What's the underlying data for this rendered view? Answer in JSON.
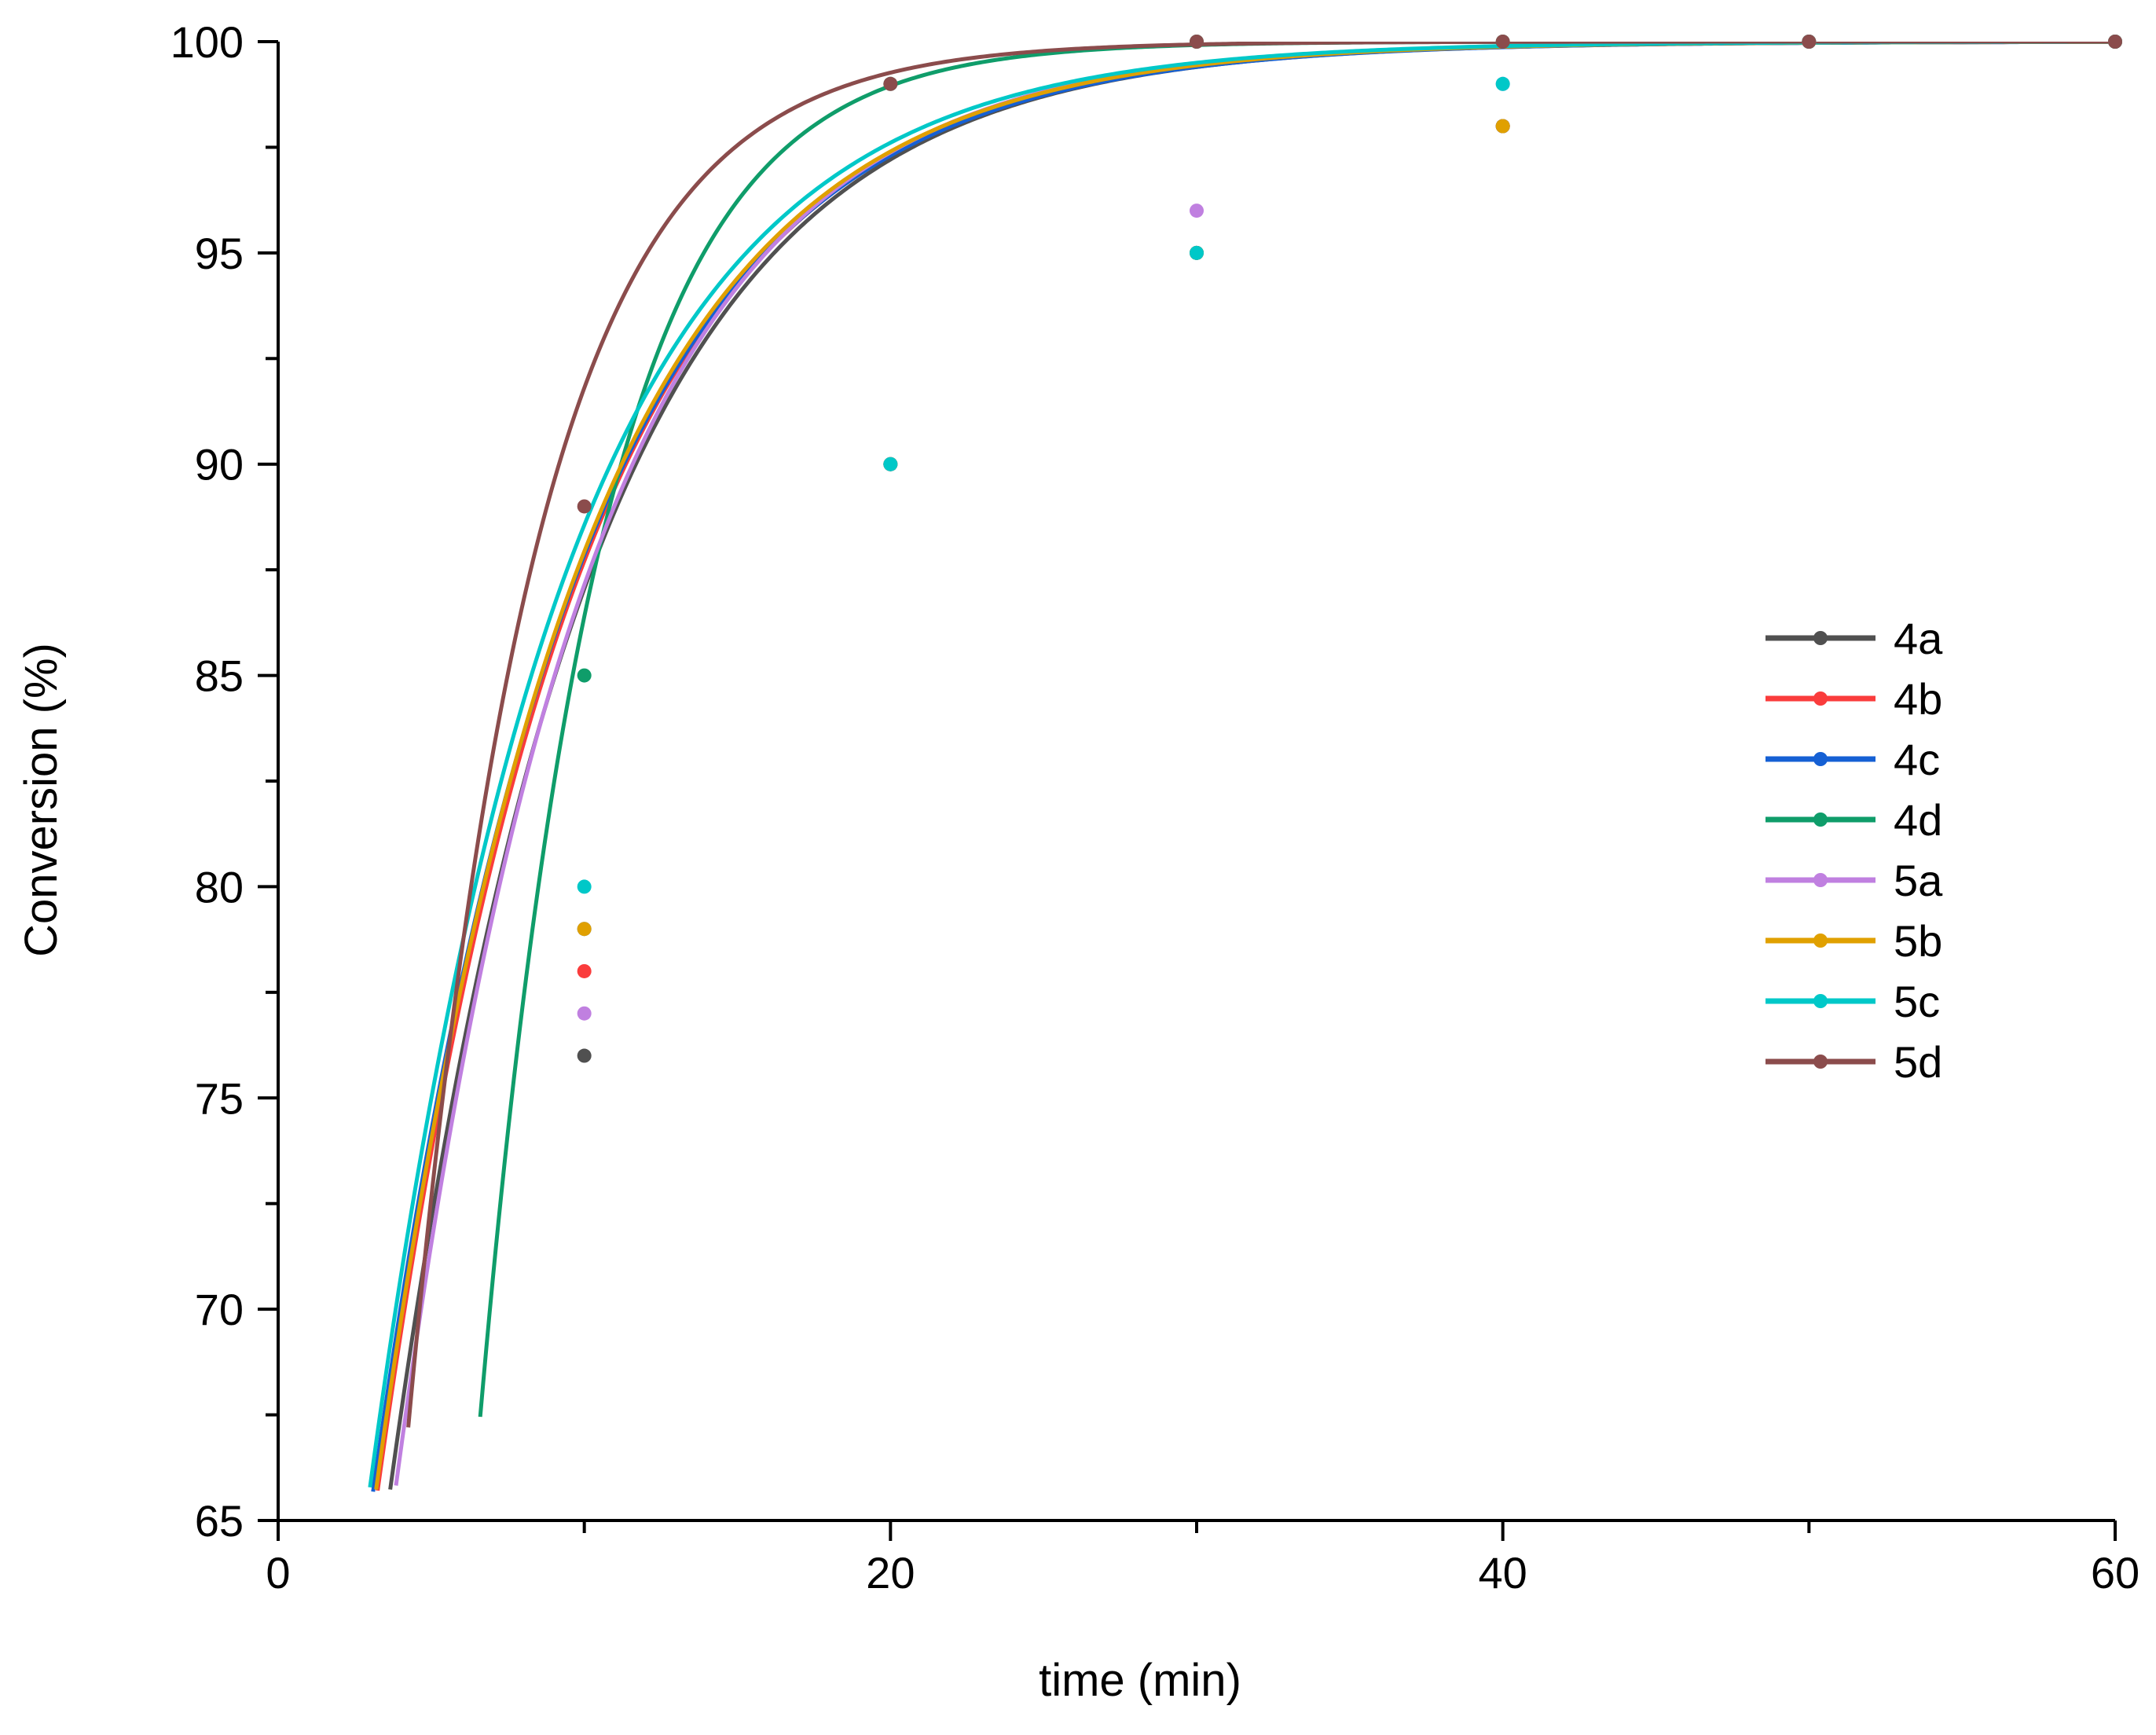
{
  "chart_data": {
    "type": "line",
    "title": "",
    "xlabel": "time (min)",
    "ylabel": "Conversion (%)",
    "xlim": [
      0,
      60
    ],
    "ylim": [
      65,
      100
    ],
    "xticks": [
      0,
      20,
      40,
      60
    ],
    "yticks": [
      65,
      70,
      75,
      80,
      85,
      90,
      95,
      100
    ],
    "grid": false,
    "legend_position": "right",
    "series": [
      {
        "name": "4a",
        "color": "#505050",
        "x": [
          10,
          20,
          30,
          40,
          50,
          60
        ],
        "y": [
          76,
          90,
          95,
          98,
          100,
          100
        ],
        "fit": {
          "k": 0.1535,
          "t0": 3.16
        }
      },
      {
        "name": "4b",
        "color": "#fa3c3c",
        "x": [
          10,
          20,
          30,
          40,
          50,
          60
        ],
        "y": [
          78,
          90,
          95,
          98,
          100,
          100
        ],
        "fit": {
          "k": 0.152,
          "t0": 2.75
        }
      },
      {
        "name": "4c",
        "color": "#1560d4",
        "x": [
          10,
          20,
          30,
          40,
          50,
          60
        ],
        "y": [
          79,
          90,
          95,
          98,
          100,
          100
        ],
        "fit": {
          "k": 0.1505,
          "t0": 2.6
        }
      },
      {
        "name": "4d",
        "color": "#0f9d6a",
        "x": [
          10,
          20,
          30,
          40,
          50,
          60
        ],
        "y": [
          85,
          99,
          100,
          100,
          100,
          100
        ],
        "fit": {
          "k": 0.2565,
          "t0": 6.1
        }
      },
      {
        "name": "5a",
        "color": "#c080e0",
        "x": [
          10,
          20,
          30,
          40,
          50,
          60
        ],
        "y": [
          77,
          90,
          96,
          99,
          100,
          100
        ],
        "fit": {
          "k": 0.159,
          "t0": 3.35
        }
      },
      {
        "name": "5b",
        "color": "#e0a000",
        "x": [
          10,
          20,
          30,
          40,
          50,
          60
        ],
        "y": [
          79,
          90,
          95,
          98,
          100,
          100
        ],
        "fit": {
          "k": 0.1535,
          "t0": 2.7
        }
      },
      {
        "name": "5c",
        "color": "#00c8c8",
        "x": [
          10,
          20,
          30,
          40,
          50,
          60
        ],
        "y": [
          80,
          90,
          95,
          99,
          100,
          100
        ],
        "fit": {
          "k": 0.1565,
          "t0": 2.5
        }
      },
      {
        "name": "5d",
        "color": "#8b4c4c",
        "x": [
          10,
          20,
          30,
          40,
          50,
          60
        ],
        "y": [
          89,
          99,
          100,
          100,
          100,
          100
        ],
        "fit": {
          "k": 0.2412,
          "t0": 3.75
        }
      }
    ]
  }
}
